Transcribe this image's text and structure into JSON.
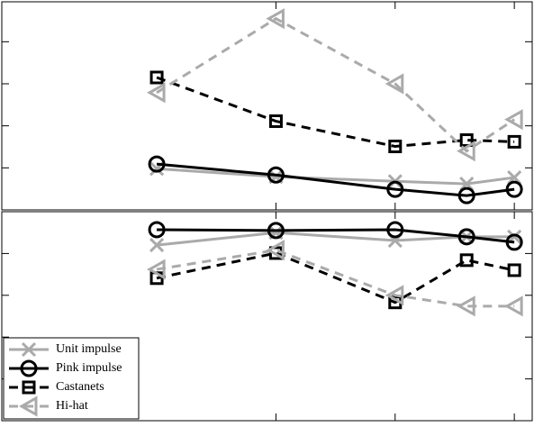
{
  "chart_data": [
    {
      "type": "line",
      "xlim": [
        -1.3,
        3.15
      ],
      "xticks": [
        1,
        2,
        3
      ],
      "ylim": [
        0,
        4.95
      ],
      "yticks": [
        1,
        2,
        3,
        4
      ],
      "x": [
        0,
        1,
        2,
        2.6,
        3
      ],
      "series": [
        {
          "color": "#aaaaaa",
          "marker": "x",
          "dashed": false,
          "values": [
            0.98,
            0.79,
            0.68,
            0.62,
            0.77
          ]
        },
        {
          "color": "#000000",
          "marker": "o",
          "dashed": false,
          "values": [
            1.09,
            0.83,
            0.49,
            0.34,
            0.49
          ]
        },
        {
          "color": "#000000",
          "marker": "s",
          "dashed": true,
          "values": [
            3.15,
            2.11,
            1.51,
            1.66,
            1.62
          ]
        },
        {
          "color": "#aaaaaa",
          "marker": "<",
          "dashed": true,
          "values": [
            2.79,
            4.55,
            3.0,
            1.4,
            2.15
          ]
        }
      ]
    },
    {
      "type": "line",
      "xlim": [
        -1.3,
        3.15
      ],
      "xticks": [
        1,
        2,
        3
      ],
      "ylim": [
        0,
        5
      ],
      "yticks": [
        1,
        2,
        3,
        4
      ],
      "legend": "lower left",
      "x": [
        0,
        1,
        2,
        2.6,
        3
      ],
      "series": [
        {
          "name": "Unit impulse",
          "color": "#aaaaaa",
          "marker": "x",
          "dashed": false,
          "values": [
            4.2,
            4.5,
            4.31,
            4.4,
            4.4
          ]
        },
        {
          "name": "Pink impulse",
          "color": "#000000",
          "marker": "o",
          "dashed": false,
          "values": [
            4.57,
            4.55,
            4.57,
            4.4,
            4.27
          ]
        },
        {
          "name": "Castanets",
          "color": "#000000",
          "marker": "s",
          "dashed": true,
          "values": [
            3.41,
            4.01,
            2.83,
            3.84,
            3.6
          ]
        },
        {
          "name": "Hi-hat",
          "color": "#aaaaaa",
          "marker": "<",
          "dashed": true,
          "values": [
            3.62,
            4.08,
            3.0,
            2.74,
            2.74
          ]
        }
      ]
    }
  ]
}
